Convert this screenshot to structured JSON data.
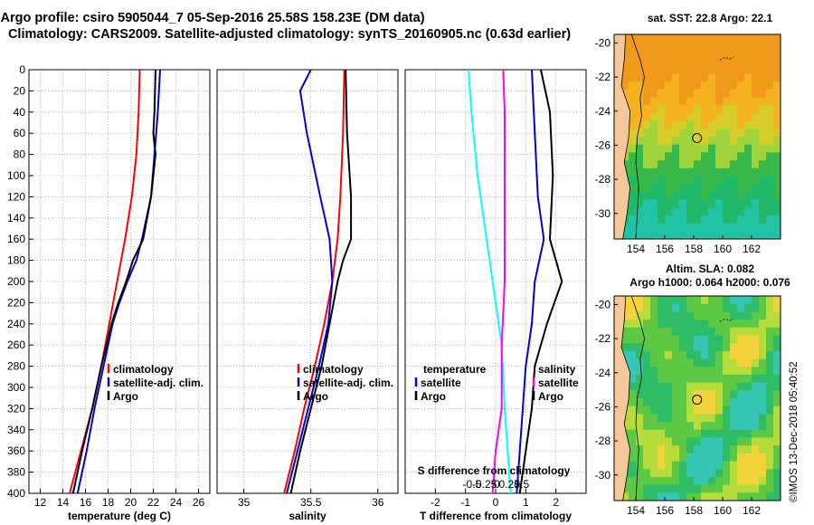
{
  "header": {
    "title_line1": "Argo profile: csiro 5905044_7 05-Sep-2016 25.58S 158.23E (DM data)",
    "title_line2": "Climatology: CARS2009. Satellite-adjusted climatology: synTS_20160905.nc (0.63d earlier)"
  },
  "maps": {
    "sst_title": "sat. SST: 22.8 Argo: 22.1",
    "sla_title1": "Altim. SLA: 0.082",
    "sla_title2": "Argo h1000: 0.064 h2000: 0.076",
    "lat_ticks": [
      "-20",
      "-22",
      "-24",
      "-26",
      "-28",
      "-30"
    ],
    "lon_ticks": [
      "154",
      "156",
      "158",
      "160",
      "162"
    ],
    "marker": {
      "lon": 158.23,
      "lat": -25.58
    }
  },
  "watermark": "©IMOS 13-Dec-2018 05:40:52",
  "colors": {
    "climatology": "#ff0000",
    "satellite": "#0000dd",
    "argo": "#000000",
    "temp_diff": "#00ffff",
    "sal_diff": "#ff00ff",
    "land": "#f5c89a"
  },
  "chart_data": [
    {
      "type": "line",
      "name": "temperature",
      "xlabel": "temperature (deg C)",
      "ylabel": "",
      "xlim": [
        11,
        27
      ],
      "ylim": [
        400,
        0
      ],
      "xticks": [
        12,
        14,
        16,
        18,
        20,
        22,
        24,
        26
      ],
      "yticks": [
        0,
        20,
        40,
        60,
        80,
        100,
        120,
        140,
        160,
        180,
        200,
        220,
        240,
        260,
        280,
        300,
        320,
        340,
        360,
        380,
        400
      ],
      "legend": [
        "climatology",
        "satellite-adj. clim.",
        "Argo"
      ],
      "series": [
        {
          "name": "climatology",
          "depth": [
            0,
            40,
            80,
            120,
            160,
            200,
            240,
            280,
            320,
            360,
            400
          ],
          "values": [
            20.8,
            20.7,
            20.5,
            20.1,
            19.5,
            18.8,
            18.1,
            17.4,
            16.6,
            15.6,
            14.6
          ]
        },
        {
          "name": "satellite-adj. clim.",
          "depth": [
            0,
            40,
            80,
            120,
            160,
            180,
            200,
            220,
            240,
            280,
            320,
            360,
            400
          ],
          "values": [
            22.6,
            22.4,
            22.1,
            21.8,
            21.0,
            20.5,
            19.7,
            19.0,
            18.4,
            17.6,
            16.8,
            16.1,
            15.3
          ]
        },
        {
          "name": "Argo",
          "depth": [
            0,
            40,
            60,
            80,
            120,
            160,
            180,
            200,
            220,
            240,
            280,
            320,
            360,
            400
          ],
          "values": [
            22.2,
            22.1,
            22.0,
            22.2,
            21.8,
            21.1,
            20.2,
            19.6,
            18.9,
            18.3,
            17.4,
            16.6,
            15.7,
            14.9
          ]
        }
      ]
    },
    {
      "type": "line",
      "name": "salinity",
      "xlabel": "salinity",
      "xlim": [
        34.8,
        36.15
      ],
      "ylim": [
        400,
        0
      ],
      "xticks": [
        35,
        35.5,
        36
      ],
      "xtick_labels": [
        "35",
        "35.5",
        "36"
      ],
      "legend": [
        "climatology",
        "satellite-adj. clim.",
        "Argo"
      ],
      "series": [
        {
          "name": "climatology",
          "depth": [
            0,
            60,
            120,
            160,
            200,
            240,
            280,
            320,
            360,
            400
          ],
          "values": [
            35.75,
            35.74,
            35.72,
            35.7,
            35.66,
            35.6,
            35.53,
            35.45,
            35.38,
            35.3
          ],
          "color": "red"
        },
        {
          "name": "satellite-adj. clim.",
          "depth": [
            0,
            20,
            60,
            120,
            160,
            200,
            240,
            280,
            320,
            360,
            400
          ],
          "values": [
            35.5,
            35.42,
            35.47,
            35.57,
            35.64,
            35.66,
            35.63,
            35.56,
            35.48,
            35.4,
            35.32
          ]
        },
        {
          "name": "Argo",
          "depth": [
            0,
            60,
            80,
            120,
            160,
            180,
            200,
            240,
            280,
            320,
            360,
            400
          ],
          "values": [
            35.76,
            35.77,
            35.78,
            35.8,
            35.8,
            35.74,
            35.7,
            35.64,
            35.58,
            35.5,
            35.42,
            35.35
          ]
        }
      ]
    },
    {
      "type": "line",
      "name": "difference",
      "xlabel": "T difference from climatology",
      "xlabel2": "S difference from climatology",
      "xlim": [
        -3,
        3
      ],
      "ylim": [
        400,
        0
      ],
      "xticks": [
        -2,
        -1,
        0,
        1,
        2
      ],
      "xticks2": [
        -0.5,
        -0.25,
        0,
        0.25,
        0.5
      ],
      "legend_temperature": [
        "satellite",
        "Argo"
      ],
      "legend_salinity": [
        "satellite",
        "Argo"
      ],
      "series": [
        {
          "name": "T satellite",
          "depth": [
            0,
            40,
            100,
            160,
            200,
            260,
            320,
            360,
            400
          ],
          "values": [
            -0.9,
            -0.8,
            -0.6,
            -0.3,
            -0.1,
            0.2,
            0.3,
            0.4,
            0.5
          ]
        },
        {
          "name": "T Argo",
          "depth": [
            0,
            60,
            120,
            160,
            200,
            240,
            280,
            320,
            360,
            400
          ],
          "values": [
            1.2,
            1.3,
            1.4,
            1.6,
            1.3,
            1.2,
            1.0,
            0.9,
            0.8,
            0.7
          ]
        },
        {
          "name": "S satellite",
          "depth": [
            0,
            40,
            100,
            160,
            200,
            260,
            320,
            360,
            400
          ],
          "values": [
            0.25,
            0.3,
            0.3,
            0.3,
            0.3,
            0.2,
            0.2,
            0.0,
            -0.1
          ]
        },
        {
          "name": "S Argo",
          "depth": [
            0,
            40,
            100,
            160,
            200,
            240,
            280,
            320,
            360,
            400
          ],
          "values": [
            1.5,
            1.8,
            1.9,
            1.8,
            2.2,
            1.7,
            1.3,
            1.2,
            1.0,
            0.8
          ]
        }
      ]
    }
  ]
}
